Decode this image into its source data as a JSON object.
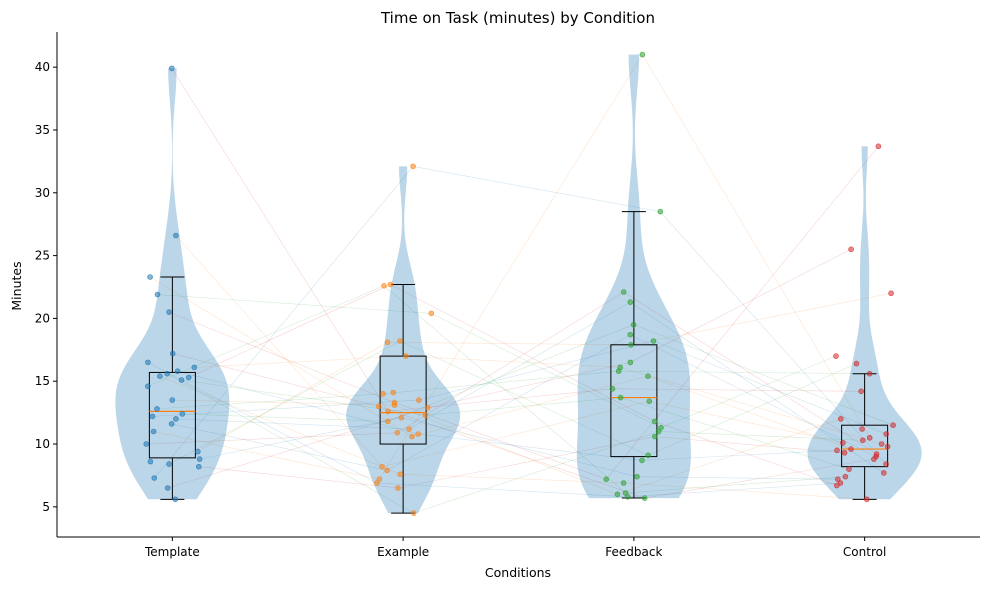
{
  "chart_data": {
    "type": "violin",
    "title": "Time on Task (minutes) by Condition",
    "xlabel": "Conditions",
    "ylabel": "Minutes",
    "categories": [
      "Template",
      "Example",
      "Feedback",
      "Control"
    ],
    "ylim": [
      2.6,
      42.8
    ],
    "yticks": [
      5,
      10,
      15,
      20,
      25,
      30,
      35,
      40
    ],
    "grid": false,
    "violin_color": "#1f77b4",
    "median_color": "#ff7f0e",
    "point_colors": [
      "#1f77b4",
      "#ff7f0e",
      "#2ca02c",
      "#d62728"
    ],
    "series": [
      {
        "box": {
          "whisker_low": 5.6,
          "q1": 8.9,
          "median": 12.6,
          "q3": 15.7,
          "whisker_high": 23.3
        },
        "points": [
          39.9,
          26.6,
          23.3,
          21.9,
          20.5,
          17.2,
          16.5,
          16.1,
          15.8,
          15.6,
          15.4,
          15.3,
          15.1,
          14.6,
          13.5,
          12.8,
          12.4,
          12.2,
          12.0,
          11.6,
          11.0,
          10.0,
          9.4,
          8.8,
          8.6,
          8.4,
          8.2,
          7.3,
          6.5,
          5.6
        ]
      },
      {
        "box": {
          "whisker_low": 4.5,
          "q1": 10.0,
          "median": 12.5,
          "q3": 17.0,
          "whisker_high": 22.7
        },
        "points": [
          32.1,
          22.7,
          22.6,
          20.4,
          18.2,
          18.1,
          17.0,
          14.1,
          14.0,
          13.5,
          13.3,
          13.1,
          13.0,
          12.9,
          12.6,
          12.3,
          12.1,
          11.8,
          11.2,
          10.9,
          10.8,
          10.6,
          8.2,
          7.9,
          7.6,
          7.2,
          6.9,
          6.5,
          4.5
        ]
      },
      {
        "box": {
          "whisker_low": 5.7,
          "q1": 9.0,
          "median": 13.7,
          "q3": 17.9,
          "whisker_high": 28.5
        },
        "points": [
          41.0,
          28.5,
          22.1,
          21.3,
          19.5,
          18.7,
          18.2,
          17.9,
          16.5,
          16.1,
          15.8,
          15.4,
          14.4,
          13.7,
          13.4,
          11.8,
          11.3,
          11.0,
          10.6,
          9.1,
          8.7,
          7.4,
          7.2,
          6.9,
          6.1,
          6.0,
          5.8,
          5.7
        ]
      },
      {
        "box": {
          "whisker_low": 5.6,
          "q1": 8.2,
          "median": 9.6,
          "q3": 11.5,
          "whisker_high": 15.6
        },
        "points": [
          33.7,
          25.5,
          22.0,
          17.0,
          16.4,
          15.6,
          14.2,
          12.0,
          11.5,
          11.2,
          10.8,
          10.5,
          10.3,
          10.1,
          10.0,
          9.8,
          9.6,
          9.5,
          9.3,
          9.2,
          9.0,
          8.8,
          8.4,
          8.0,
          7.7,
          7.4,
          7.2,
          6.9,
          6.7,
          5.6
        ]
      }
    ]
  }
}
